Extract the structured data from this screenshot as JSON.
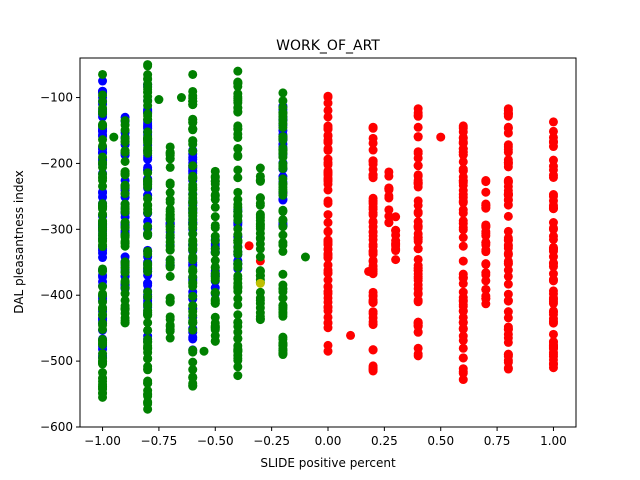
{
  "chart_data": {
    "type": "scatter",
    "title": "WORK_OF_ART",
    "xlabel": "SLIDE positive percent",
    "ylabel": "DAL pleasantness index",
    "xlim": [
      -1.1,
      1.1
    ],
    "ylim": [
      -600,
      -40
    ],
    "xticks": [
      -1.0,
      -0.75,
      -0.5,
      -0.25,
      0.0,
      0.25,
      0.5,
      0.75,
      1.0
    ],
    "xtick_labels": [
      "−1.00",
      "−0.75",
      "−0.50",
      "−0.25",
      "0.00",
      "0.25",
      "0.50",
      "0.75",
      "1.00"
    ],
    "yticks": [
      -600,
      -500,
      -400,
      -300,
      -200,
      -100
    ],
    "ytick_labels": [
      "−600",
      "−500",
      "−400",
      "−300",
      "−200",
      "−100"
    ],
    "grid": false,
    "series": [
      {
        "color": "#ff0000",
        "columns": [
          {
            "x": -0.2,
            "ymin": -245,
            "ymax": -245
          },
          {
            "x": -0.35,
            "ymin": -325,
            "ymax": -325
          },
          {
            "x": -0.3,
            "ymin": -348,
            "ymax": -348
          },
          {
            "x": 0.0,
            "ymin": -485,
            "ymax": -98
          },
          {
            "x": 0.1,
            "ymin": -461,
            "ymax": -461
          },
          {
            "x": 0.18,
            "ymin": -364,
            "ymax": -364
          },
          {
            "x": 0.2,
            "ymin": -515,
            "ymax": -145
          },
          {
            "x": 0.27,
            "ymin": -290,
            "ymax": -213
          },
          {
            "x": 0.3,
            "ymin": -346,
            "ymax": -281
          },
          {
            "x": 0.4,
            "ymin": -492,
            "ymax": -117
          },
          {
            "x": 0.5,
            "ymin": -160,
            "ymax": -160
          },
          {
            "x": 0.6,
            "ymin": -528,
            "ymax": -143
          },
          {
            "x": 0.7,
            "ymin": -413,
            "ymax": -226
          },
          {
            "x": 0.8,
            "ymin": -512,
            "ymax": -117
          },
          {
            "x": 1.0,
            "ymin": -510,
            "ymax": -137
          }
        ]
      },
      {
        "color": "#0000ff",
        "columns": [
          {
            "x": -1.0,
            "ymin": -495,
            "ymax": -75
          },
          {
            "x": -0.9,
            "ymin": -390,
            "ymax": -130
          },
          {
            "x": -0.8,
            "ymin": -470,
            "ymax": -80
          },
          {
            "x": -0.7,
            "ymin": -355,
            "ymax": -290
          },
          {
            "x": -0.6,
            "ymin": -483,
            "ymax": -180
          },
          {
            "x": -0.5,
            "ymin": -398,
            "ymax": -316
          },
          {
            "x": -0.4,
            "ymin": -360,
            "ymax": -270
          },
          {
            "x": -0.2,
            "ymin": -295,
            "ymax": -113
          }
        ]
      },
      {
        "color": "#008000",
        "columns": [
          {
            "x": -1.0,
            "ymin": -555,
            "ymax": -65
          },
          {
            "x": -0.95,
            "ymin": -160,
            "ymax": -160
          },
          {
            "x": -0.9,
            "ymin": -442,
            "ymax": -135
          },
          {
            "x": -0.8,
            "ymin": -573,
            "ymax": -50
          },
          {
            "x": -0.75,
            "ymin": -103,
            "ymax": -103
          },
          {
            "x": -0.7,
            "ymin": -465,
            "ymax": -175
          },
          {
            "x": -0.65,
            "ymin": -100,
            "ymax": -100
          },
          {
            "x": -0.6,
            "ymin": -538,
            "ymax": -65
          },
          {
            "x": -0.55,
            "ymin": -485,
            "ymax": -485
          },
          {
            "x": -0.5,
            "ymin": -470,
            "ymax": -212
          },
          {
            "x": -0.4,
            "ymin": -522,
            "ymax": -60
          },
          {
            "x": -0.3,
            "ymin": -437,
            "ymax": -207
          },
          {
            "x": -0.2,
            "ymin": -490,
            "ymax": -93
          },
          {
            "x": -0.1,
            "ymin": -342,
            "ymax": -342
          }
        ]
      },
      {
        "color": "#bfbf00",
        "columns": [
          {
            "x": -0.3,
            "ymin": -382,
            "ymax": -382
          }
        ]
      }
    ]
  }
}
